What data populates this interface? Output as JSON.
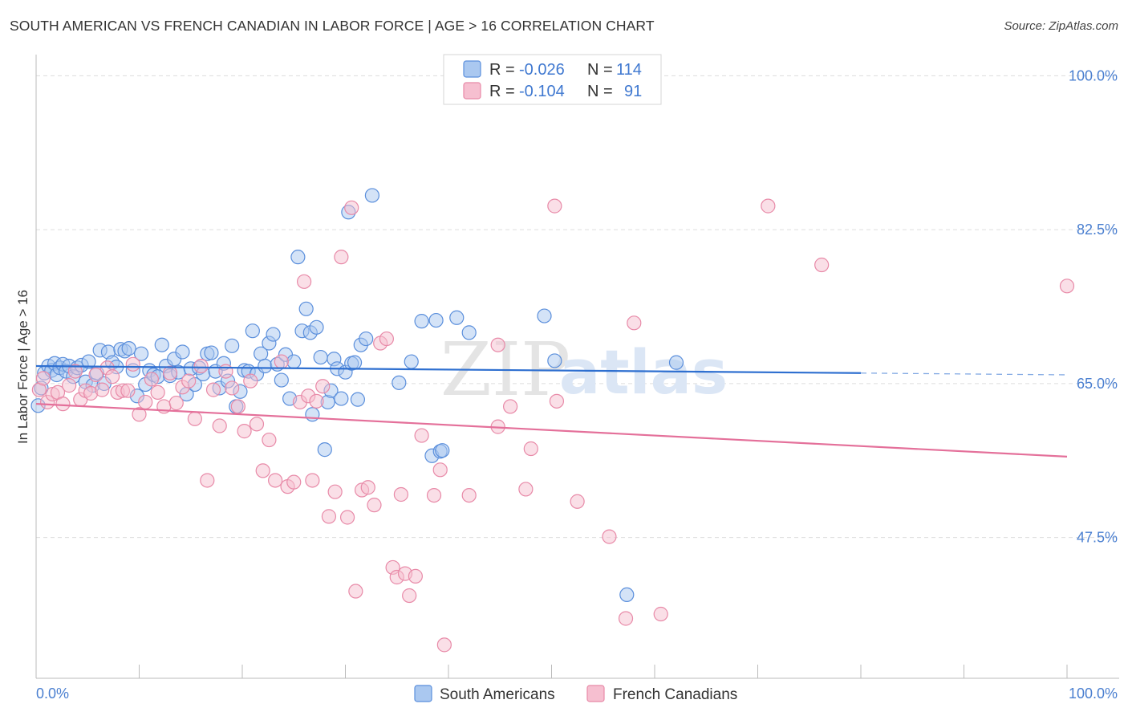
{
  "title": "SOUTH AMERICAN VS FRENCH CANADIAN IN LABOR FORCE | AGE > 16 CORRELATION CHART",
  "source": "Source: ZipAtlas.com",
  "watermark": {
    "zip": "ZIP",
    "atlas": "atlas"
  },
  "colors": {
    "blue_fill": "#aac8f0",
    "blue_stroke": "#5b8fdc",
    "blue_line": "#2e6fd0",
    "pink_fill": "#f6bfd0",
    "pink_stroke": "#e88aa8",
    "pink_line": "#e4709a",
    "axis_text": "#4a7fd0",
    "grid": "#dddddd"
  },
  "legend": {
    "rows": [
      {
        "r_label": "R =",
        "r_value": "-0.026",
        "n_label": "N =",
        "n_value": "114"
      },
      {
        "r_label": "R =",
        "r_value": "-0.104",
        "n_label": "N =",
        "n_value": "91"
      }
    ]
  },
  "bottom_legend": [
    "South Americans",
    "French Canadians"
  ],
  "chart_data": {
    "type": "scatter",
    "title": "SOUTH AMERICAN VS FRENCH CANADIAN IN LABOR FORCE | AGE > 16 CORRELATION CHART",
    "xlabel": "",
    "ylabel": "In Labor Force | Age > 16",
    "x_tick_labels": [
      "0.0%",
      "100.0%"
    ],
    "y_tick_labels": [
      "100.0%",
      "82.5%",
      "65.0%",
      "47.5%"
    ],
    "y_ticks": [
      100,
      82.5,
      65,
      47.5
    ],
    "xlim": [
      0,
      100
    ],
    "ylim": [
      31.5,
      101.5
    ],
    "series": [
      {
        "name": "South Americans",
        "R": -0.026,
        "N": 114,
        "trend": {
          "x": [
            0,
            80
          ],
          "y": [
            67.0,
            66.2
          ],
          "dashed_to": [
            100,
            66.0
          ]
        },
        "points": [
          [
            0.2,
            62.5
          ],
          [
            0.5,
            64.5
          ],
          [
            0.8,
            66.2
          ],
          [
            1.2,
            67.0
          ],
          [
            1.5,
            66.5
          ],
          [
            1.8,
            67.3
          ],
          [
            2.0,
            66.0
          ],
          [
            2.3,
            66.8
          ],
          [
            2.6,
            67.2
          ],
          [
            2.9,
            66.4
          ],
          [
            3.2,
            67.0
          ],
          [
            3.6,
            65.8
          ],
          [
            4.0,
            66.8
          ],
          [
            4.4,
            67.1
          ],
          [
            4.8,
            65.2
          ],
          [
            5.1,
            67.5
          ],
          [
            5.5,
            64.8
          ],
          [
            5.9,
            66.2
          ],
          [
            6.2,
            68.8
          ],
          [
            6.6,
            65.0
          ],
          [
            7.0,
            68.6
          ],
          [
            7.4,
            67.4
          ],
          [
            7.8,
            66.9
          ],
          [
            8.2,
            68.9
          ],
          [
            8.6,
            68.7
          ],
          [
            9.0,
            69.0
          ],
          [
            9.4,
            66.5
          ],
          [
            9.8,
            63.6
          ],
          [
            10.2,
            68.4
          ],
          [
            10.6,
            64.9
          ],
          [
            11.0,
            66.5
          ],
          [
            11.4,
            66.0
          ],
          [
            11.8,
            65.8
          ],
          [
            12.2,
            69.4
          ],
          [
            12.6,
            67.0
          ],
          [
            13.0,
            65.9
          ],
          [
            13.4,
            67.8
          ],
          [
            13.8,
            66.3
          ],
          [
            14.2,
            68.6
          ],
          [
            14.6,
            63.8
          ],
          [
            15.0,
            66.7
          ],
          [
            15.4,
            64.9
          ],
          [
            15.8,
            66.8
          ],
          [
            16.2,
            66.1
          ],
          [
            16.6,
            68.4
          ],
          [
            17.0,
            68.5
          ],
          [
            17.4,
            66.4
          ],
          [
            17.8,
            64.5
          ],
          [
            18.2,
            67.3
          ],
          [
            18.6,
            65.3
          ],
          [
            19.0,
            69.3
          ],
          [
            19.4,
            62.4
          ],
          [
            19.8,
            64.1
          ],
          [
            20.2,
            66.5
          ],
          [
            20.6,
            66.4
          ],
          [
            21.0,
            71.0
          ],
          [
            21.4,
            66.1
          ],
          [
            21.8,
            68.4
          ],
          [
            22.2,
            67.0
          ],
          [
            22.6,
            69.6
          ],
          [
            23.0,
            70.6
          ],
          [
            23.4,
            67.2
          ],
          [
            23.8,
            65.4
          ],
          [
            24.2,
            68.3
          ],
          [
            24.6,
            63.3
          ],
          [
            25.0,
            67.5
          ],
          [
            25.4,
            79.4
          ],
          [
            25.8,
            71.0
          ],
          [
            26.2,
            73.5
          ],
          [
            26.6,
            70.8
          ],
          [
            26.8,
            61.5
          ],
          [
            27.2,
            71.4
          ],
          [
            27.6,
            68.0
          ],
          [
            28.0,
            57.5
          ],
          [
            28.3,
            62.9
          ],
          [
            28.6,
            64.2
          ],
          [
            28.9,
            67.8
          ],
          [
            29.2,
            66.7
          ],
          [
            29.6,
            63.3
          ],
          [
            30.0,
            66.3
          ],
          [
            30.3,
            84.5
          ],
          [
            30.6,
            67.3
          ],
          [
            30.9,
            67.4
          ],
          [
            31.2,
            63.2
          ],
          [
            31.5,
            69.4
          ],
          [
            32.0,
            70.1
          ],
          [
            32.6,
            86.4
          ],
          [
            35.2,
            65.1
          ],
          [
            36.4,
            67.5
          ],
          [
            37.4,
            72.1
          ],
          [
            38.4,
            56.8
          ],
          [
            38.8,
            72.2
          ],
          [
            39.2,
            57.3
          ],
          [
            39.4,
            57.4
          ],
          [
            40.8,
            72.5
          ],
          [
            42.0,
            70.8
          ],
          [
            49.3,
            72.7
          ],
          [
            50.3,
            67.6
          ],
          [
            57.3,
            41.0
          ],
          [
            62.1,
            67.4
          ]
        ]
      },
      {
        "name": "French Canadians",
        "R": -0.104,
        "N": 91,
        "trend": {
          "x": [
            0,
            100
          ],
          "y": [
            62.7,
            56.7
          ]
        },
        "points": [
          [
            0.3,
            64.3
          ],
          [
            0.7,
            65.6
          ],
          [
            1.1,
            62.9
          ],
          [
            1.6,
            63.8
          ],
          [
            2.1,
            64.0
          ],
          [
            2.6,
            62.7
          ],
          [
            3.2,
            64.8
          ],
          [
            3.8,
            66.4
          ],
          [
            4.3,
            63.2
          ],
          [
            4.8,
            64.2
          ],
          [
            5.3,
            63.9
          ],
          [
            5.8,
            66.0
          ],
          [
            6.4,
            64.3
          ],
          [
            6.9,
            66.8
          ],
          [
            7.4,
            65.8
          ],
          [
            7.9,
            64.0
          ],
          [
            8.4,
            64.2
          ],
          [
            8.9,
            64.2
          ],
          [
            9.4,
            67.2
          ],
          [
            10.0,
            61.5
          ],
          [
            10.6,
            62.9
          ],
          [
            11.2,
            65.5
          ],
          [
            11.8,
            64.0
          ],
          [
            12.4,
            62.4
          ],
          [
            13.0,
            66.2
          ],
          [
            13.6,
            62.8
          ],
          [
            14.2,
            64.6
          ],
          [
            14.8,
            65.3
          ],
          [
            15.4,
            61.0
          ],
          [
            16.0,
            67.0
          ],
          [
            16.6,
            54.0
          ],
          [
            17.2,
            64.3
          ],
          [
            17.8,
            60.2
          ],
          [
            18.4,
            66.4
          ],
          [
            19.0,
            64.5
          ],
          [
            19.6,
            62.4
          ],
          [
            20.2,
            59.6
          ],
          [
            20.8,
            65.3
          ],
          [
            21.4,
            60.4
          ],
          [
            22.0,
            55.1
          ],
          [
            22.6,
            58.6
          ],
          [
            23.2,
            54.0
          ],
          [
            23.8,
            67.5
          ],
          [
            24.4,
            53.3
          ],
          [
            25.0,
            53.8
          ],
          [
            25.6,
            62.9
          ],
          [
            26.0,
            76.6
          ],
          [
            26.4,
            63.6
          ],
          [
            26.8,
            54.0
          ],
          [
            27.2,
            63.0
          ],
          [
            27.8,
            64.7
          ],
          [
            28.4,
            49.9
          ],
          [
            29.0,
            52.7
          ],
          [
            29.6,
            79.4
          ],
          [
            30.2,
            49.8
          ],
          [
            30.6,
            85.0
          ],
          [
            31.0,
            41.4
          ],
          [
            31.6,
            52.9
          ],
          [
            32.2,
            53.2
          ],
          [
            32.8,
            51.2
          ],
          [
            33.4,
            69.6
          ],
          [
            34.0,
            70.1
          ],
          [
            34.6,
            44.1
          ],
          [
            35.0,
            43.0
          ],
          [
            35.4,
            52.4
          ],
          [
            35.8,
            43.4
          ],
          [
            36.2,
            40.9
          ],
          [
            36.8,
            43.1
          ],
          [
            37.4,
            59.1
          ],
          [
            38.6,
            52.3
          ],
          [
            39.2,
            55.2
          ],
          [
            39.6,
            35.3
          ],
          [
            42.0,
            52.3
          ],
          [
            44.8,
            69.4
          ],
          [
            44.8,
            60.1
          ],
          [
            46.0,
            62.4
          ],
          [
            47.5,
            53.0
          ],
          [
            48.0,
            57.6
          ],
          [
            50.3,
            85.2
          ],
          [
            50.5,
            63.0
          ],
          [
            52.5,
            51.6
          ],
          [
            55.6,
            47.6
          ],
          [
            57.2,
            38.3
          ],
          [
            58.0,
            71.9
          ],
          [
            60.6,
            38.8
          ],
          [
            71.0,
            85.2
          ],
          [
            76.2,
            78.5
          ],
          [
            100.0,
            76.1
          ]
        ]
      }
    ]
  }
}
